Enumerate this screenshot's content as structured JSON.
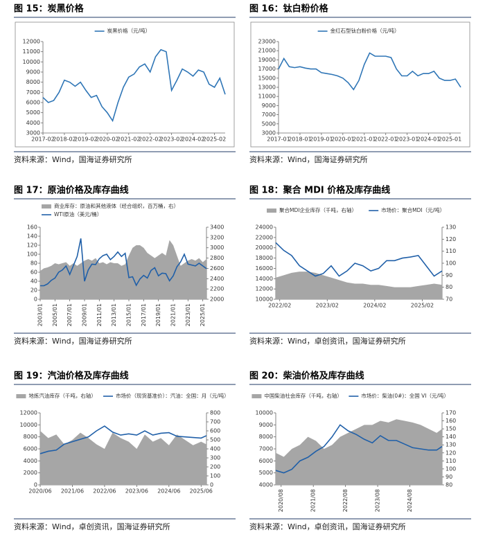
{
  "chart_data": [
    {
      "type": "line",
      "title": "图 15：炭黑价格",
      "source": "资料来源：Wind，国海证券研究所",
      "x": [
        "2017-02",
        "2017-05",
        "2017-08",
        "2017-11",
        "2018-02",
        "2018-05",
        "2018-08",
        "2018-11",
        "2019-02",
        "2019-05",
        "2019-08",
        "2019-11",
        "2020-02",
        "2020-05",
        "2020-08",
        "2020-11",
        "2021-02",
        "2021-05",
        "2021-08",
        "2021-11",
        "2022-02",
        "2022-05",
        "2022-08",
        "2022-11",
        "2023-02",
        "2023-05",
        "2023-08",
        "2023-11",
        "2024-02",
        "2024-05",
        "2024-08",
        "2024-11",
        "2025-02",
        "2025-05",
        "2025-08"
      ],
      "xticks": [
        "2017-02",
        "2018-02",
        "2019-02",
        "2020-02",
        "2021-02",
        "2022-02",
        "2023-02",
        "2024-02",
        "2025-02"
      ],
      "series": [
        {
          "name": "炭黑价格（元/吨）",
          "type": "line",
          "color": "#2e75b6",
          "values": [
            6500,
            6000,
            6200,
            7000,
            8200,
            8000,
            7600,
            8000,
            7200,
            6500,
            6700,
            5600,
            5000,
            4200,
            6000,
            7500,
            8500,
            8800,
            9500,
            9800,
            9000,
            10500,
            11200,
            11000,
            7200,
            8200,
            9300,
            9000,
            8600,
            9200,
            9000,
            7800,
            7500,
            8400,
            6800
          ]
        }
      ],
      "ylim": [
        3000,
        12000
      ],
      "yticks": [
        3000,
        4000,
        5000,
        6000,
        7000,
        8000,
        9000,
        10000,
        11000,
        12000
      ]
    },
    {
      "type": "line",
      "title": "图 16：钛白粉价格",
      "source": "资料来源：Wind，国海证券研究所",
      "x": [
        "2017-01",
        "2017-04",
        "2017-07",
        "2017-10",
        "2018-01",
        "2018-04",
        "2018-07",
        "2018-10",
        "2019-01",
        "2019-04",
        "2019-07",
        "2019-10",
        "2020-01",
        "2020-04",
        "2020-07",
        "2020-10",
        "2021-01",
        "2021-04",
        "2021-07",
        "2021-10",
        "2022-01",
        "2022-04",
        "2022-07",
        "2022-10",
        "2023-01",
        "2023-04",
        "2023-07",
        "2023-10",
        "2024-01",
        "2024-04",
        "2024-07",
        "2024-10",
        "2025-01",
        "2025-04",
        "2025-07"
      ],
      "xticks": [
        "2017-01",
        "2018-01",
        "2019-01",
        "2020-01",
        "2021-01",
        "2022-01",
        "2023-01",
        "2024-01",
        "2025-01"
      ],
      "series": [
        {
          "name": "金红石型钛白粉价格（元/吨）",
          "type": "line",
          "color": "#2e75b6",
          "values": [
            17000,
            19300,
            17500,
            17300,
            17500,
            17200,
            17000,
            17000,
            16200,
            16000,
            15800,
            15500,
            15000,
            14000,
            12500,
            14500,
            18000,
            20500,
            19800,
            19800,
            19800,
            19500,
            17000,
            15500,
            15500,
            16500,
            15500,
            16000,
            16000,
            16500,
            15000,
            14500,
            14500,
            14800,
            13000
          ]
        }
      ],
      "ylim": [
        3000,
        23000
      ],
      "yticks": [
        3000,
        5000,
        7000,
        9000,
        11000,
        13000,
        15000,
        17000,
        19000,
        21000,
        23000
      ]
    },
    {
      "type": "line",
      "title": "图 17：原油价格及库存曲线",
      "source": "资料来源：Wind，国海证券研究所",
      "x": [
        "2003/01",
        "2003/07",
        "2004/01",
        "2004/07",
        "2005/01",
        "2005/07",
        "2006/01",
        "2006/07",
        "2007/01",
        "2007/07",
        "2008/01",
        "2008/07",
        "2009/01",
        "2009/07",
        "2010/01",
        "2010/07",
        "2011/01",
        "2011/07",
        "2012/01",
        "2012/07",
        "2013/01",
        "2013/07",
        "2014/01",
        "2014/07",
        "2015/01",
        "2015/07",
        "2016/01",
        "2016/07",
        "2017/01",
        "2017/07",
        "2018/01",
        "2018/07",
        "2019/01",
        "2019/07",
        "2020/01",
        "2020/07",
        "2021/01",
        "2021/07",
        "2022/01",
        "2022/07",
        "2023/01",
        "2023/07",
        "2024/01",
        "2024/07",
        "2025/01",
        "2025/07"
      ],
      "xticks": [
        "2003/01",
        "2005/01",
        "2007/01",
        "2009/01",
        "2011/01",
        "2013/01",
        "2015/01",
        "2017/01",
        "2019/01",
        "2021/01",
        "2023/01",
        "2025/01"
      ],
      "series": [
        {
          "name": "商业库存：原油和其他液体（经合组织，百万桶，右）",
          "type": "area",
          "axis": "y2",
          "color": "#a6a6a6",
          "values": [
            2550,
            2600,
            2620,
            2650,
            2700,
            2680,
            2700,
            2720,
            2650,
            2700,
            2650,
            2700,
            2750,
            2780,
            2750,
            2800,
            2700,
            2720,
            2680,
            2720,
            2700,
            2700,
            2650,
            2680,
            2850,
            3000,
            3050,
            3050,
            3000,
            2900,
            2850,
            2800,
            2850,
            2900,
            2850,
            3150,
            3050,
            2850,
            2650,
            2700,
            2750,
            2780,
            2750,
            2800,
            2720,
            2780
          ]
        },
        {
          "name": "WTI原油（美元/桶）",
          "type": "line",
          "color": "#1f5fa8",
          "values": [
            30,
            30,
            34,
            42,
            47,
            60,
            65,
            74,
            55,
            75,
            95,
            135,
            40,
            65,
            78,
            77,
            90,
            97,
            100,
            88,
            95,
            105,
            95,
            102,
            48,
            50,
            31,
            45,
            53,
            47,
            64,
            70,
            52,
            58,
            57,
            41,
            52,
            72,
            83,
            100,
            78,
            76,
            74,
            80,
            74,
            68
          ]
        }
      ],
      "ylim": [
        0,
        160
      ],
      "yticks": [
        0,
        20,
        40,
        60,
        80,
        100,
        120,
        140,
        160
      ],
      "y2lim": [
        2000,
        3400
      ],
      "y2ticks": [
        2000,
        2200,
        2400,
        2600,
        2800,
        3000,
        3200,
        3400
      ]
    },
    {
      "type": "line",
      "title": "图 18：聚合 MDI 价格及库存曲线",
      "source": "资料来源：Wind，卓创资讯，国海证券研究所",
      "x": [
        "2022/01",
        "2022/03",
        "2022/05",
        "2022/07",
        "2022/09",
        "2022/11",
        "2023/01",
        "2023/03",
        "2023/05",
        "2023/07",
        "2023/09",
        "2023/11",
        "2024/01",
        "2024/03",
        "2024/05",
        "2024/07",
        "2024/09",
        "2024/11",
        "2025/01",
        "2025/03",
        "2025/05",
        "2025/07"
      ],
      "xticks": [
        "2022/02",
        "2023/02",
        "2024/02",
        "2025/02"
      ],
      "series": [
        {
          "name": "聚合MDI企业库存（千吨，右轴）",
          "type": "area",
          "axis": "y2",
          "color": "#a6a6a6",
          "values": [
            88,
            90,
            92,
            93,
            93,
            92,
            90,
            88,
            86,
            84,
            83,
            83,
            82,
            82,
            81,
            80,
            80,
            80,
            81,
            82,
            83,
            82
          ]
        },
        {
          "name": "市场价：聚合MDI（元/吨）",
          "type": "line",
          "color": "#1f5fa8",
          "values": [
            21000,
            19500,
            18500,
            16500,
            15500,
            14500,
            15000,
            16500,
            14500,
            15500,
            17000,
            16500,
            15500,
            16000,
            17500,
            17500,
            18000,
            18200,
            18500,
            16500,
            14500,
            15500
          ]
        }
      ],
      "ylim": [
        10000,
        24000
      ],
      "yticks": [
        10000,
        12000,
        14000,
        16000,
        18000,
        20000,
        22000,
        24000
      ],
      "y2lim": [
        70,
        130
      ],
      "y2ticks": [
        70,
        80,
        90,
        100,
        110,
        120,
        130
      ]
    },
    {
      "type": "line",
      "title": "图 19：汽油价格及库存曲线",
      "source": "资料来源：Wind，卓创资讯，国海证券研究所",
      "x": [
        "2020/06",
        "2020/09",
        "2020/12",
        "2021/03",
        "2021/06",
        "2021/09",
        "2021/12",
        "2022/03",
        "2022/06",
        "2022/09",
        "2022/12",
        "2023/03",
        "2023/06",
        "2023/09",
        "2023/12",
        "2024/03",
        "2024/06",
        "2024/09",
        "2024/12",
        "2025/03",
        "2025/06",
        "2025/08"
      ],
      "xticks": [
        "2020/06",
        "2021/06",
        "2022/06",
        "2023/06",
        "2024/06",
        "2025/06"
      ],
      "series": [
        {
          "name": "地炼汽油库存（千吨，右轴）",
          "type": "area",
          "axis": "y2",
          "color": "#a6a6a6",
          "values": [
            600,
            520,
            560,
            450,
            500,
            580,
            520,
            450,
            400,
            580,
            520,
            480,
            400,
            560,
            480,
            520,
            440,
            560,
            500,
            440,
            480,
            450
          ]
        },
        {
          "name": "市场价（现货基准价）：汽油：全国：月（元/吨）",
          "type": "line",
          "color": "#1f5fa8",
          "values": [
            5200,
            5600,
            5800,
            6800,
            7200,
            7600,
            8000,
            9000,
            9800,
            8800,
            8300,
            8500,
            8300,
            9000,
            8300,
            8600,
            8700,
            8100,
            8000,
            7900,
            7800,
            8200
          ]
        }
      ],
      "ylim": [
        0,
        12000
      ],
      "yticks": [
        0,
        2000,
        4000,
        6000,
        8000,
        10000,
        12000
      ],
      "y2lim": [
        0,
        800
      ],
      "y2ticks": [
        0,
        100,
        200,
        300,
        400,
        500,
        600,
        700,
        800
      ]
    },
    {
      "type": "line",
      "title": "图 20：柴油价格及库存曲线",
      "source": "资料来源：Wind，卓创资讯，国海证券研究所",
      "x": [
        "2020/06",
        "2020/09",
        "2020/12",
        "2021/03",
        "2021/06",
        "2021/09",
        "2021/12",
        "2022/03",
        "2022/06",
        "2022/09",
        "2022/12",
        "2023/03",
        "2023/06",
        "2023/09",
        "2023/12",
        "2024/03",
        "2024/06",
        "2024/09",
        "2024/12",
        "2025/03",
        "2025/06",
        "2025/08"
      ],
      "xticks": [
        "2020/08",
        "2021/08",
        "2022/08",
        "2023/08",
        "2024/08"
      ],
      "series": [
        {
          "name": "中国柴油社会库存（千吨，右轴）",
          "type": "area",
          "axis": "y2",
          "color": "#a6a6a6",
          "values": [
            120,
            115,
            125,
            130,
            140,
            135,
            125,
            130,
            140,
            145,
            150,
            155,
            155,
            160,
            158,
            162,
            160,
            158,
            155,
            150,
            145,
            150
          ]
        },
        {
          "name": "市场价：柴油(0#)：全国 VI（元/吨）",
          "type": "line",
          "color": "#1f5fa8",
          "values": [
            5200,
            5000,
            5300,
            6000,
            6300,
            6800,
            7200,
            8000,
            9000,
            8500,
            8200,
            7800,
            7500,
            8100,
            7700,
            7700,
            7400,
            7100,
            7000,
            6900,
            6900,
            7200
          ]
        }
      ],
      "ylim": [
        4000,
        10000
      ],
      "yticks": [
        4000,
        5000,
        6000,
        7000,
        8000,
        9000,
        10000
      ],
      "y2lim": [
        80,
        170
      ],
      "y2ticks": [
        80,
        90,
        100,
        110,
        120,
        130,
        140,
        150,
        160,
        170
      ]
    }
  ]
}
